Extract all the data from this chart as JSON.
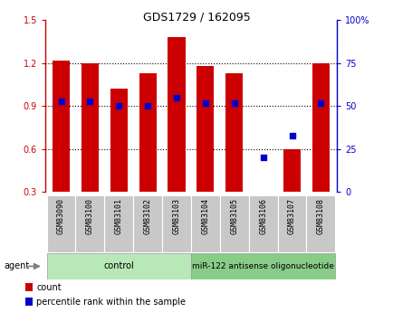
{
  "title": "GDS1729 / 162095",
  "samples": [
    "GSM83090",
    "GSM83100",
    "GSM83101",
    "GSM83102",
    "GSM83103",
    "GSM83104",
    "GSM83105",
    "GSM83106",
    "GSM83107",
    "GSM83108"
  ],
  "bar_values": [
    1.22,
    1.2,
    1.02,
    1.13,
    1.38,
    1.18,
    1.13,
    0.3,
    0.6,
    1.2
  ],
  "bar_bottom": 0.3,
  "percentile_values": [
    53,
    53,
    50,
    50,
    55,
    52,
    52,
    20,
    33,
    52
  ],
  "ylim_left": [
    0.3,
    1.5
  ],
  "ylim_right": [
    0,
    100
  ],
  "yticks_left": [
    0.3,
    0.6,
    0.9,
    1.2,
    1.5
  ],
  "yticks_right": [
    0,
    25,
    50,
    75,
    100
  ],
  "ytick_labels_left": [
    "0.3",
    "0.6",
    "0.9",
    "1.2",
    "1.5"
  ],
  "ytick_labels_right": [
    "0",
    "25",
    "50",
    "75",
    "100%"
  ],
  "bar_color": "#CC0000",
  "dot_color": "#0000CC",
  "bg_color": "#C8C8C8",
  "control_color": "#B8E8B8",
  "treatment_color": "#88CC88",
  "control_label": "control",
  "treatment_label": "miR-122 antisense oligonucleotide",
  "control_count": 5,
  "treatment_count": 5,
  "legend_count_label": "count",
  "legend_pct_label": "percentile rank within the sample",
  "agent_label": "agent",
  "left_axis_color": "#CC0000",
  "right_axis_color": "#0000CC",
  "title_fontsize": 9,
  "tick_fontsize": 7,
  "label_fontsize": 6,
  "agent_fontsize": 7
}
